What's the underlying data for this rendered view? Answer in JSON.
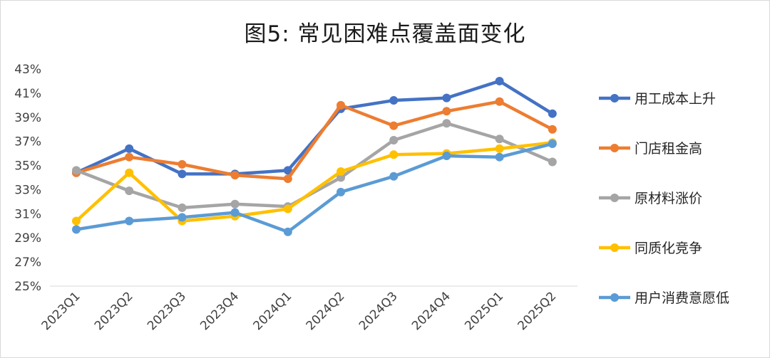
{
  "chart_data": {
    "type": "line",
    "title": "图5: 常见困难点覆盖面变化",
    "xlabel": "",
    "ylabel": "",
    "categories": [
      "2023Q1",
      "2023Q2",
      "2023Q3",
      "2023Q4",
      "2024Q1",
      "2024Q2",
      "2024Q3",
      "2024Q4",
      "2025Q1",
      "2025Q2"
    ],
    "ylim": [
      25,
      43
    ],
    "yticks": [
      "25%",
      "27%",
      "29%",
      "31%",
      "33%",
      "35%",
      "37%",
      "39%",
      "41%",
      "43%"
    ],
    "grid": false,
    "legend_position": "right",
    "series": [
      {
        "name": "用工成本上升",
        "color": "#4472C4",
        "values": [
          34.4,
          36.4,
          34.3,
          34.3,
          34.6,
          39.7,
          40.4,
          40.6,
          42.0,
          39.3
        ]
      },
      {
        "name": "门店租金高",
        "color": "#ED7D31",
        "values": [
          34.4,
          35.7,
          35.1,
          34.2,
          33.9,
          40.0,
          38.3,
          39.5,
          40.3,
          38.0
        ]
      },
      {
        "name": "原材料涨价",
        "color": "#A5A5A5",
        "values": [
          34.6,
          32.9,
          31.5,
          31.8,
          31.6,
          34.0,
          37.1,
          38.5,
          37.2,
          35.3
        ]
      },
      {
        "name": "同质化竞争",
        "color": "#FFC000",
        "values": [
          30.4,
          34.4,
          30.4,
          30.8,
          31.4,
          34.5,
          35.9,
          36.0,
          36.4,
          36.9
        ]
      },
      {
        "name": "用户消费意愿低",
        "color": "#5B9BD5",
        "values": [
          29.7,
          30.4,
          30.7,
          31.1,
          29.5,
          32.8,
          34.1,
          35.8,
          35.7,
          36.8
        ]
      }
    ]
  }
}
